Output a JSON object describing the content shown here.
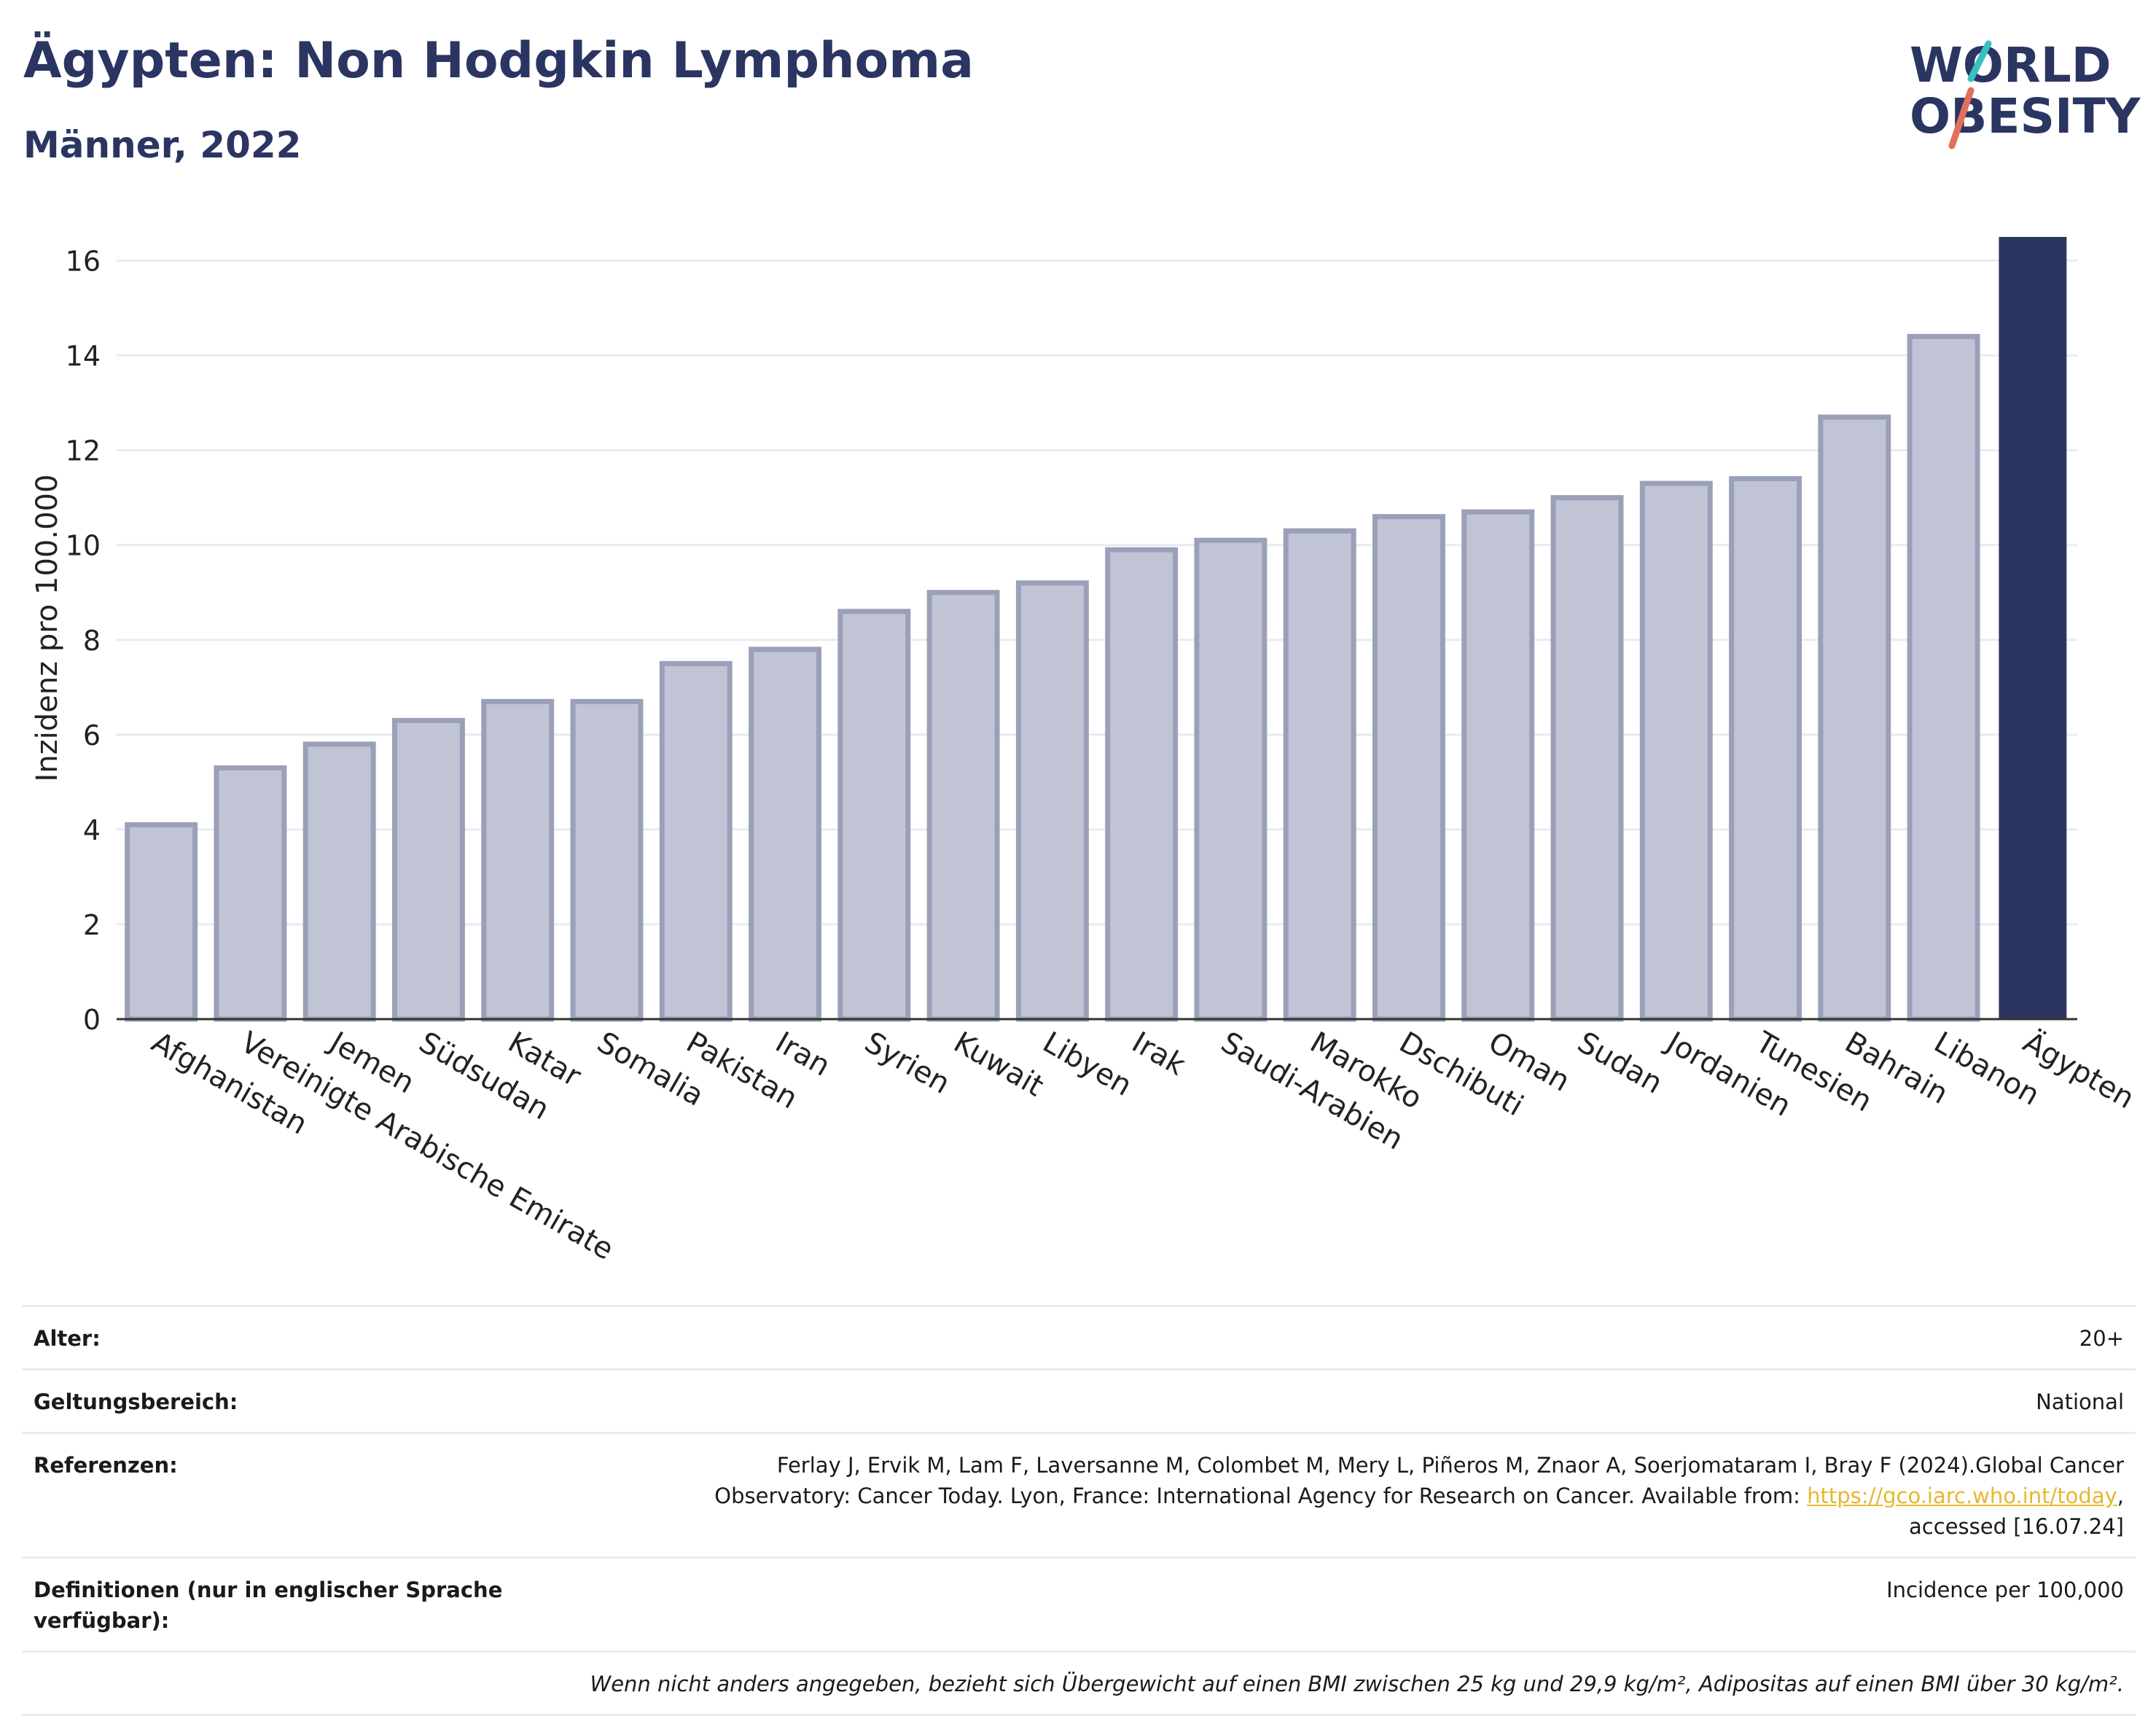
{
  "header": {
    "title": "Ägypten: Non Hodgkin Lymphoma",
    "subtitle": "Männer, 2022"
  },
  "logo": {
    "line1": "WORLD",
    "line2": "OBESITY",
    "colors": [
      "#2b3562",
      "#38c0c0",
      "#e0705a"
    ]
  },
  "colors": {
    "highlight": "#2b3562",
    "bar": "#c0c4d4",
    "bar_border": "#9aa0b8",
    "grid": "#e8ebf2",
    "link": "#e8b72c"
  },
  "chart_data": {
    "type": "bar",
    "ylabel": "Inzidenz pro 100.000",
    "ylim": [
      0,
      16.5
    ],
    "yticks": [
      0,
      2,
      4,
      6,
      8,
      10,
      12,
      14,
      16
    ],
    "grid": true,
    "categories": [
      "Afghanistan",
      "Vereinigte Arabische Emirate",
      "Jemen",
      "Südsudan",
      "Katar",
      "Somalia",
      "Pakistan",
      "Iran",
      "Syrien",
      "Kuwait",
      "Libyen",
      "Irak",
      "Saudi-Arabien",
      "Marokko",
      "Dschibuti",
      "Oman",
      "Sudan",
      "Jordanien",
      "Tunesien",
      "Bahrain",
      "Libanon",
      "Ägypten"
    ],
    "values": [
      4.1,
      5.3,
      5.8,
      6.3,
      6.7,
      6.7,
      7.5,
      7.8,
      8.6,
      9.0,
      9.2,
      9.9,
      10.1,
      10.3,
      10.6,
      10.7,
      11.0,
      11.3,
      11.4,
      12.7,
      14.4,
      16.5
    ],
    "highlight": "Ägypten"
  },
  "info": {
    "rows": [
      {
        "label": "Alter:",
        "value": "20+"
      },
      {
        "label": "Geltungsbereich:",
        "value": "National"
      }
    ],
    "references": {
      "label": "Referenzen:",
      "text1": "Ferlay J, Ervik M, Lam F, Laversanne M, Colombet M, Mery L, Piñeros M, Znaor A, Soerjomataram I, Bray F (2024).Global Cancer",
      "text2": "Observatory: Cancer Today. Lyon, France: International Agency for Research on Cancer. Available from: ",
      "link": "https://gco.iarc.who.int/today",
      "text3": ",",
      "text4": "accessed [16.07.24]"
    },
    "definitions": {
      "label": "Definitionen (nur in englischer Sprache verfügbar):",
      "value": "Incidence per 100,000"
    },
    "note": "Wenn nicht anders angegeben, bezieht sich Übergewicht auf einen BMI zwischen 25 kg und 29,9 kg/m², Adipositas auf einen BMI über 30 kg/m²."
  }
}
